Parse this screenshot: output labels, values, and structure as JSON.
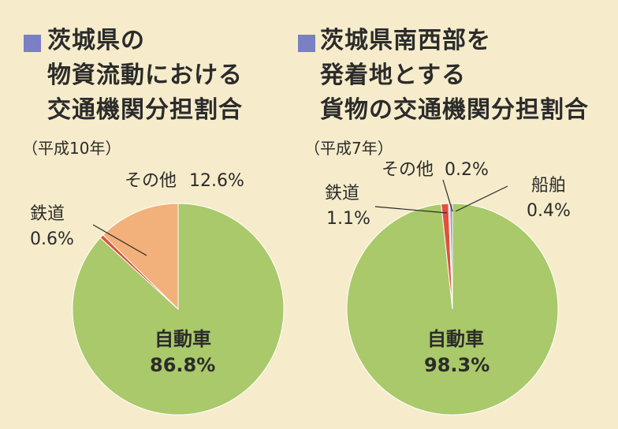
{
  "colors": {
    "background": "#f6eccb",
    "marker": "#7b7fc4",
    "car": "#a9c96a",
    "other": "#f2b07a",
    "rail": "#e0513a",
    "ship": "#8f8ed0"
  },
  "left": {
    "title_lines": [
      "茨城県の",
      "物資流動における",
      "交通機関分担割合"
    ],
    "year": "（平成10年）"
  },
  "right": {
    "title_lines": [
      "茨城県南西部を",
      "発着地とする",
      "貨物の交通機関分担割合"
    ],
    "year": "（平成7年）"
  },
  "chart_data": [
    {
      "type": "pie",
      "title": "茨城県の物資流動における交通機関分担割合（平成10年）",
      "slices": [
        {
          "name": "自動車",
          "value": 86.8,
          "label": "86.8%",
          "color": "#a9c96a"
        },
        {
          "name": "鉄道",
          "value": 0.6,
          "label": "0.6%",
          "color": "#e0513a"
        },
        {
          "name": "その他",
          "value": 12.6,
          "label": "12.6%",
          "color": "#f2b07a"
        }
      ],
      "start": "12 o'clock",
      "direction": "clockwise"
    },
    {
      "type": "pie",
      "title": "茨城県南西部を発着地とする貨物の交通機関分担割合（平成7年）",
      "slices": [
        {
          "name": "自動車",
          "value": 98.3,
          "label": "98.3%",
          "color": "#a9c96a"
        },
        {
          "name": "鉄道",
          "value": 1.1,
          "label": "1.1%",
          "color": "#e0513a"
        },
        {
          "name": "その他",
          "value": 0.2,
          "label": "0.2%",
          "color": "#f2b07a"
        },
        {
          "name": "船舶",
          "value": 0.4,
          "label": "0.4%",
          "color": "#8f8ed0"
        }
      ],
      "start": "12 o'clock",
      "direction": "clockwise"
    }
  ]
}
